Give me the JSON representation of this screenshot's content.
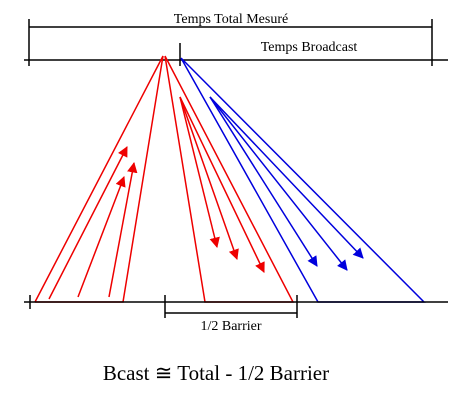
{
  "diagram": {
    "labels": {
      "total": "Temps Total Mesuré",
      "broadcast": "Temps Broadcast",
      "half_barrier": "1/2 Barrier",
      "formula": "Bcast ≅ Total - 1/2 Barrier"
    },
    "colors": {
      "axis": "#000000",
      "red_phase": "#ee0000",
      "blue_phase": "#0000dd"
    }
  }
}
